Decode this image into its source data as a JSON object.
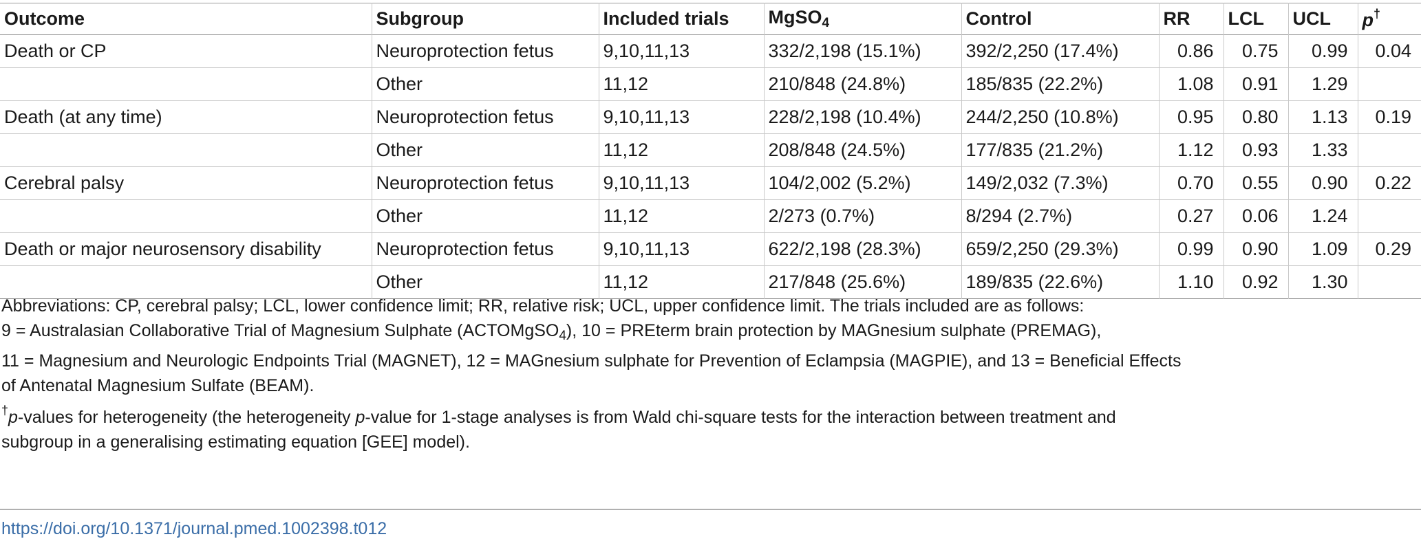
{
  "table": {
    "headers": {
      "outcome": "Outcome",
      "subgroup": "Subgroup",
      "trials": "Included trials",
      "mgso4_main": "MgSO",
      "mgso4_sub": "4",
      "control": "Control",
      "rr": "RR",
      "lcl": "LCL",
      "ucl": "UCL",
      "p_main": "p",
      "p_sup": "†"
    },
    "rows": [
      {
        "outcome": "Death or CP",
        "subgroup": "Neuroprotection fetus",
        "trials": "9,10,11,13",
        "mgso4": "332/2,198 (15.1%)",
        "control": "392/2,250 (17.4%)",
        "rr": "0.86",
        "lcl": "0.75",
        "ucl": "0.99",
        "p": "0.04"
      },
      {
        "outcome": "",
        "subgroup": "Other",
        "trials": "11,12",
        "mgso4": "210/848 (24.8%)",
        "control": "185/835 (22.2%)",
        "rr": "1.08",
        "lcl": "0.91",
        "ucl": "1.29",
        "p": ""
      },
      {
        "outcome": "Death (at any time)",
        "subgroup": "Neuroprotection fetus",
        "trials": "9,10,11,13",
        "mgso4": "228/2,198 (10.4%)",
        "control": "244/2,250 (10.8%)",
        "rr": "0.95",
        "lcl": "0.80",
        "ucl": "1.13",
        "p": "0.19"
      },
      {
        "outcome": "",
        "subgroup": "Other",
        "trials": "11,12",
        "mgso4": "208/848 (24.5%)",
        "control": "177/835 (21.2%)",
        "rr": "1.12",
        "lcl": "0.93",
        "ucl": "1.33",
        "p": ""
      },
      {
        "outcome": "Cerebral palsy",
        "subgroup": "Neuroprotection fetus",
        "trials": "9,10,11,13",
        "mgso4": "104/2,002 (5.2%)",
        "control": "149/2,032 (7.3%)",
        "rr": "0.70",
        "lcl": "0.55",
        "ucl": "0.90",
        "p": "0.22"
      },
      {
        "outcome": "",
        "subgroup": "Other",
        "trials": "11,12",
        "mgso4": "2/273 (0.7%)",
        "control": "8/294 (2.7%)",
        "rr": "0.27",
        "lcl": "0.06",
        "ucl": "1.24",
        "p": ""
      },
      {
        "outcome": "Death or major neurosensory disability",
        "subgroup": "Neuroprotection fetus",
        "trials": "9,10,11,13",
        "mgso4": "622/2,198 (28.3%)",
        "control": "659/2,250 (29.3%)",
        "rr": "0.99",
        "lcl": "0.90",
        "ucl": "1.09",
        "p": "0.29"
      },
      {
        "outcome": "",
        "subgroup": "Other",
        "trials": "11,12",
        "mgso4": "217/848 (25.6%)",
        "control": "189/835 (22.6%)",
        "rr": "1.10",
        "lcl": "0.92",
        "ucl": "1.30",
        "p": ""
      }
    ]
  },
  "footnotes": {
    "abbrev_line": "Abbreviations: CP, cerebral palsy; LCL, lower confidence limit; RR, relative risk; UCL, upper confidence limit. The trials included are as follows:",
    "trials_line1_a": "9 = Australasian Collaborative Trial of Magnesium Sulphate (ACTOMgSO",
    "trials_line1_sub": "4",
    "trials_line1_b": "), 10 = PREterm brain protection by MAGnesium sulphate (PREMAG),",
    "trials_line2": "11 = Magnesium and Neurologic Endpoints Trial (MAGNET), 12 = MAGnesium sulphate for Prevention of Eclampsia (MAGPIE), and 13 = Beneficial Effects",
    "trials_line3": "of Antenatal Magnesium Sulfate (BEAM).",
    "dagger_sup": "†",
    "dagger_p": "p",
    "dagger_text_a": "-values for heterogeneity (the heterogeneity ",
    "dagger_p2": "p",
    "dagger_text_b": "-value for 1-stage analyses is from Wald chi-square tests for the interaction between treatment and",
    "dagger_line2": "subgroup in a generalising estimating equation [GEE] model)."
  },
  "doi_link": "https://doi.org/10.1371/journal.pmed.1002398.t012"
}
